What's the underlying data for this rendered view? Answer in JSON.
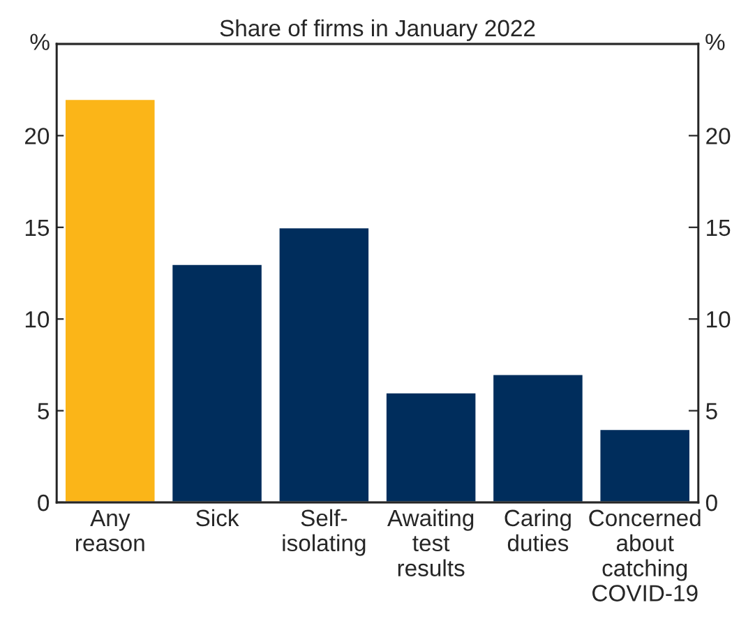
{
  "chart_data": {
    "type": "bar",
    "title": "Share of firms in January 2022",
    "categories": [
      "Any\nreason",
      "Sick",
      "Self-\nisolating",
      "Awaiting\ntest\nresults",
      "Caring\nduties",
      "Concerned\nabout\ncatching\nCOVID-19"
    ],
    "values": [
      22,
      13,
      15,
      6,
      7,
      4
    ],
    "colors": [
      "#fbb518",
      "#002d5c",
      "#002d5c",
      "#002d5c",
      "#002d5c",
      "#002d5c"
    ],
    "ylabel": "%",
    "y2label": "%",
    "ylim": [
      0,
      25
    ],
    "yticks": [
      0,
      5,
      10,
      15,
      20
    ],
    "y2lim": [
      0,
      25
    ],
    "y2ticks": [
      0,
      5,
      10,
      15,
      20
    ],
    "grid": false
  }
}
